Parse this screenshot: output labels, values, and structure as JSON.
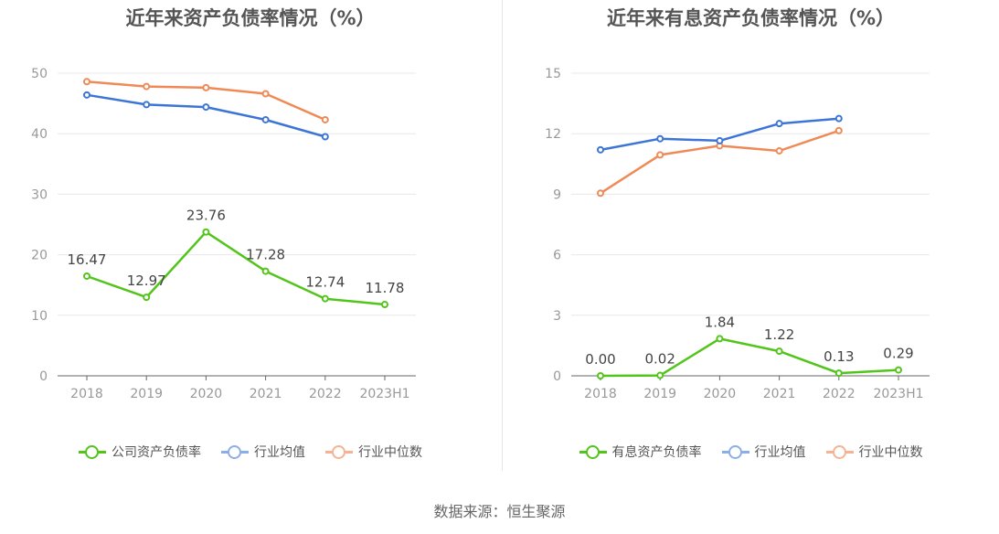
{
  "source": "数据来源：恒生聚源",
  "chart_data": [
    {
      "type": "line",
      "title": "近年来资产负债率情况（%）",
      "categories": [
        "2018",
        "2019",
        "2020",
        "2021",
        "2022",
        "2023H1"
      ],
      "ylim": [
        0,
        50
      ],
      "yticks": [
        0,
        10,
        20,
        30,
        40,
        50
      ],
      "grid": true,
      "legend_position": "bottom",
      "series": [
        {
          "name": "公司资产负债率",
          "color": "#52c41a",
          "labels": true,
          "values": [
            16.47,
            12.97,
            23.76,
            17.28,
            12.74,
            11.78
          ],
          "value_labels": [
            "16.47",
            "12.97",
            "23.76",
            "17.28",
            "12.74",
            "11.78"
          ]
        },
        {
          "name": "行业均值",
          "color": "#3d75d6",
          "legend_color": "#8caee8",
          "labels": false,
          "values": [
            46.4,
            44.8,
            44.4,
            42.3,
            39.5,
            null
          ]
        },
        {
          "name": "行业中位数",
          "color": "#ef8a57",
          "legend_color": "#f5b394",
          "labels": false,
          "values": [
            48.6,
            47.8,
            47.6,
            46.6,
            42.3,
            null
          ]
        }
      ]
    },
    {
      "type": "line",
      "title": "近年来有息资产负债率情况（%）",
      "categories": [
        "2018",
        "2019",
        "2020",
        "2021",
        "2022",
        "2023H1"
      ],
      "ylim": [
        0,
        15
      ],
      "yticks": [
        0,
        3,
        6,
        9,
        12,
        15
      ],
      "grid": true,
      "legend_position": "bottom",
      "series": [
        {
          "name": "有息资产负债率",
          "color": "#52c41a",
          "labels": true,
          "values": [
            0.0,
            0.02,
            1.84,
            1.22,
            0.13,
            0.29
          ],
          "value_labels": [
            "0.00",
            "0.02",
            "1.84",
            "1.22",
            "0.13",
            "0.29"
          ]
        },
        {
          "name": "行业均值",
          "color": "#3d75d6",
          "legend_color": "#8caee8",
          "labels": false,
          "values": [
            11.2,
            11.75,
            11.65,
            12.5,
            12.75,
            null
          ]
        },
        {
          "name": "行业中位数",
          "color": "#ef8a57",
          "legend_color": "#f5b394",
          "labels": false,
          "values": [
            9.05,
            10.95,
            11.4,
            11.15,
            12.15,
            null
          ]
        }
      ]
    }
  ]
}
